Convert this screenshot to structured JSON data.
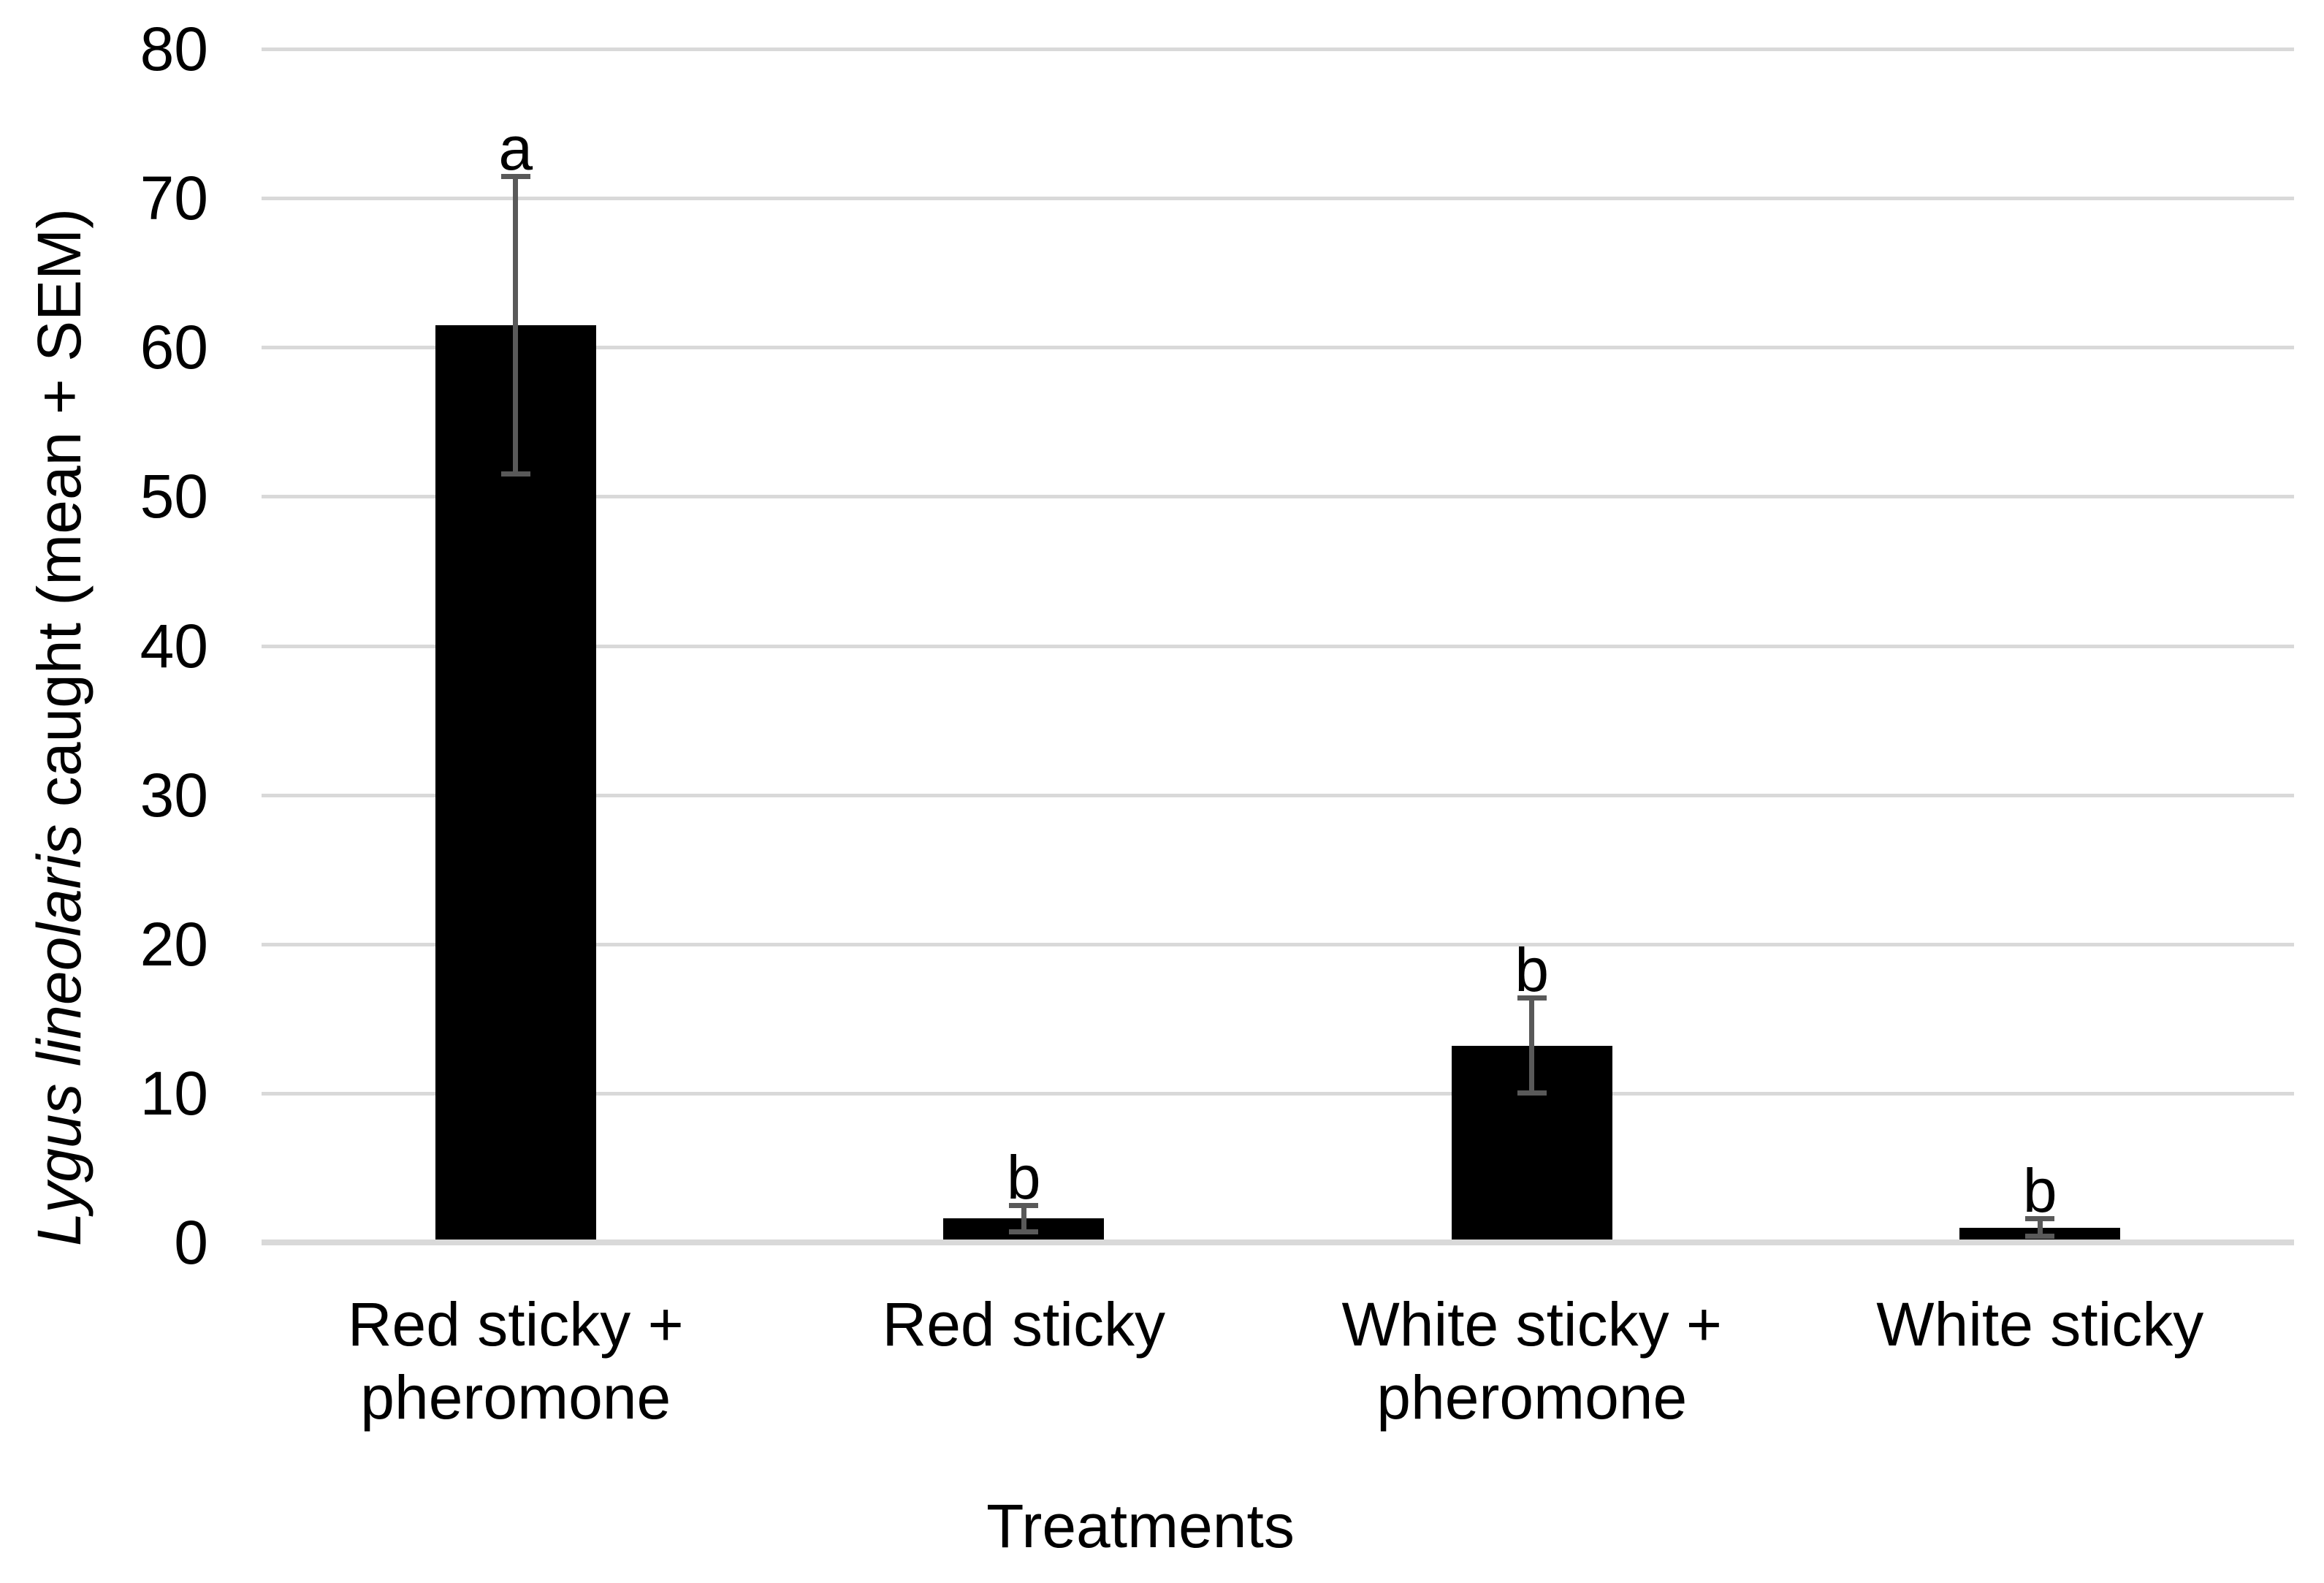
{
  "chart_data": {
    "type": "bar",
    "title": "",
    "categories": [
      "Red sticky + pheromone",
      "Red sticky",
      "White sticky + pheromone",
      "White sticky"
    ],
    "series": [
      {
        "name": "Lygus lineolaris caught (mean + SEM)",
        "values": [
          61.5,
          1.6,
          13.2,
          1.0
        ],
        "sem": [
          10,
          0.9,
          3.2,
          0.6
        ]
      }
    ],
    "sig_letters": [
      "a",
      "b",
      "b",
      "b"
    ],
    "xlabel": "Treatments",
    "ylabel": {
      "italic": "Lygus lineolaris",
      "rest": " caught (mean + SEM)"
    },
    "ylim": [
      0,
      80
    ],
    "yticks": [
      0,
      10,
      20,
      30,
      40,
      50,
      60,
      70,
      80
    ],
    "grid": true,
    "legend": "none",
    "colors": {
      "bar": "#000000",
      "error_bar": "#595959",
      "gridline": "#D9D9D9",
      "axis_line": "#D9D9D9",
      "text": "#000000",
      "background": "#FFFFFF"
    }
  }
}
